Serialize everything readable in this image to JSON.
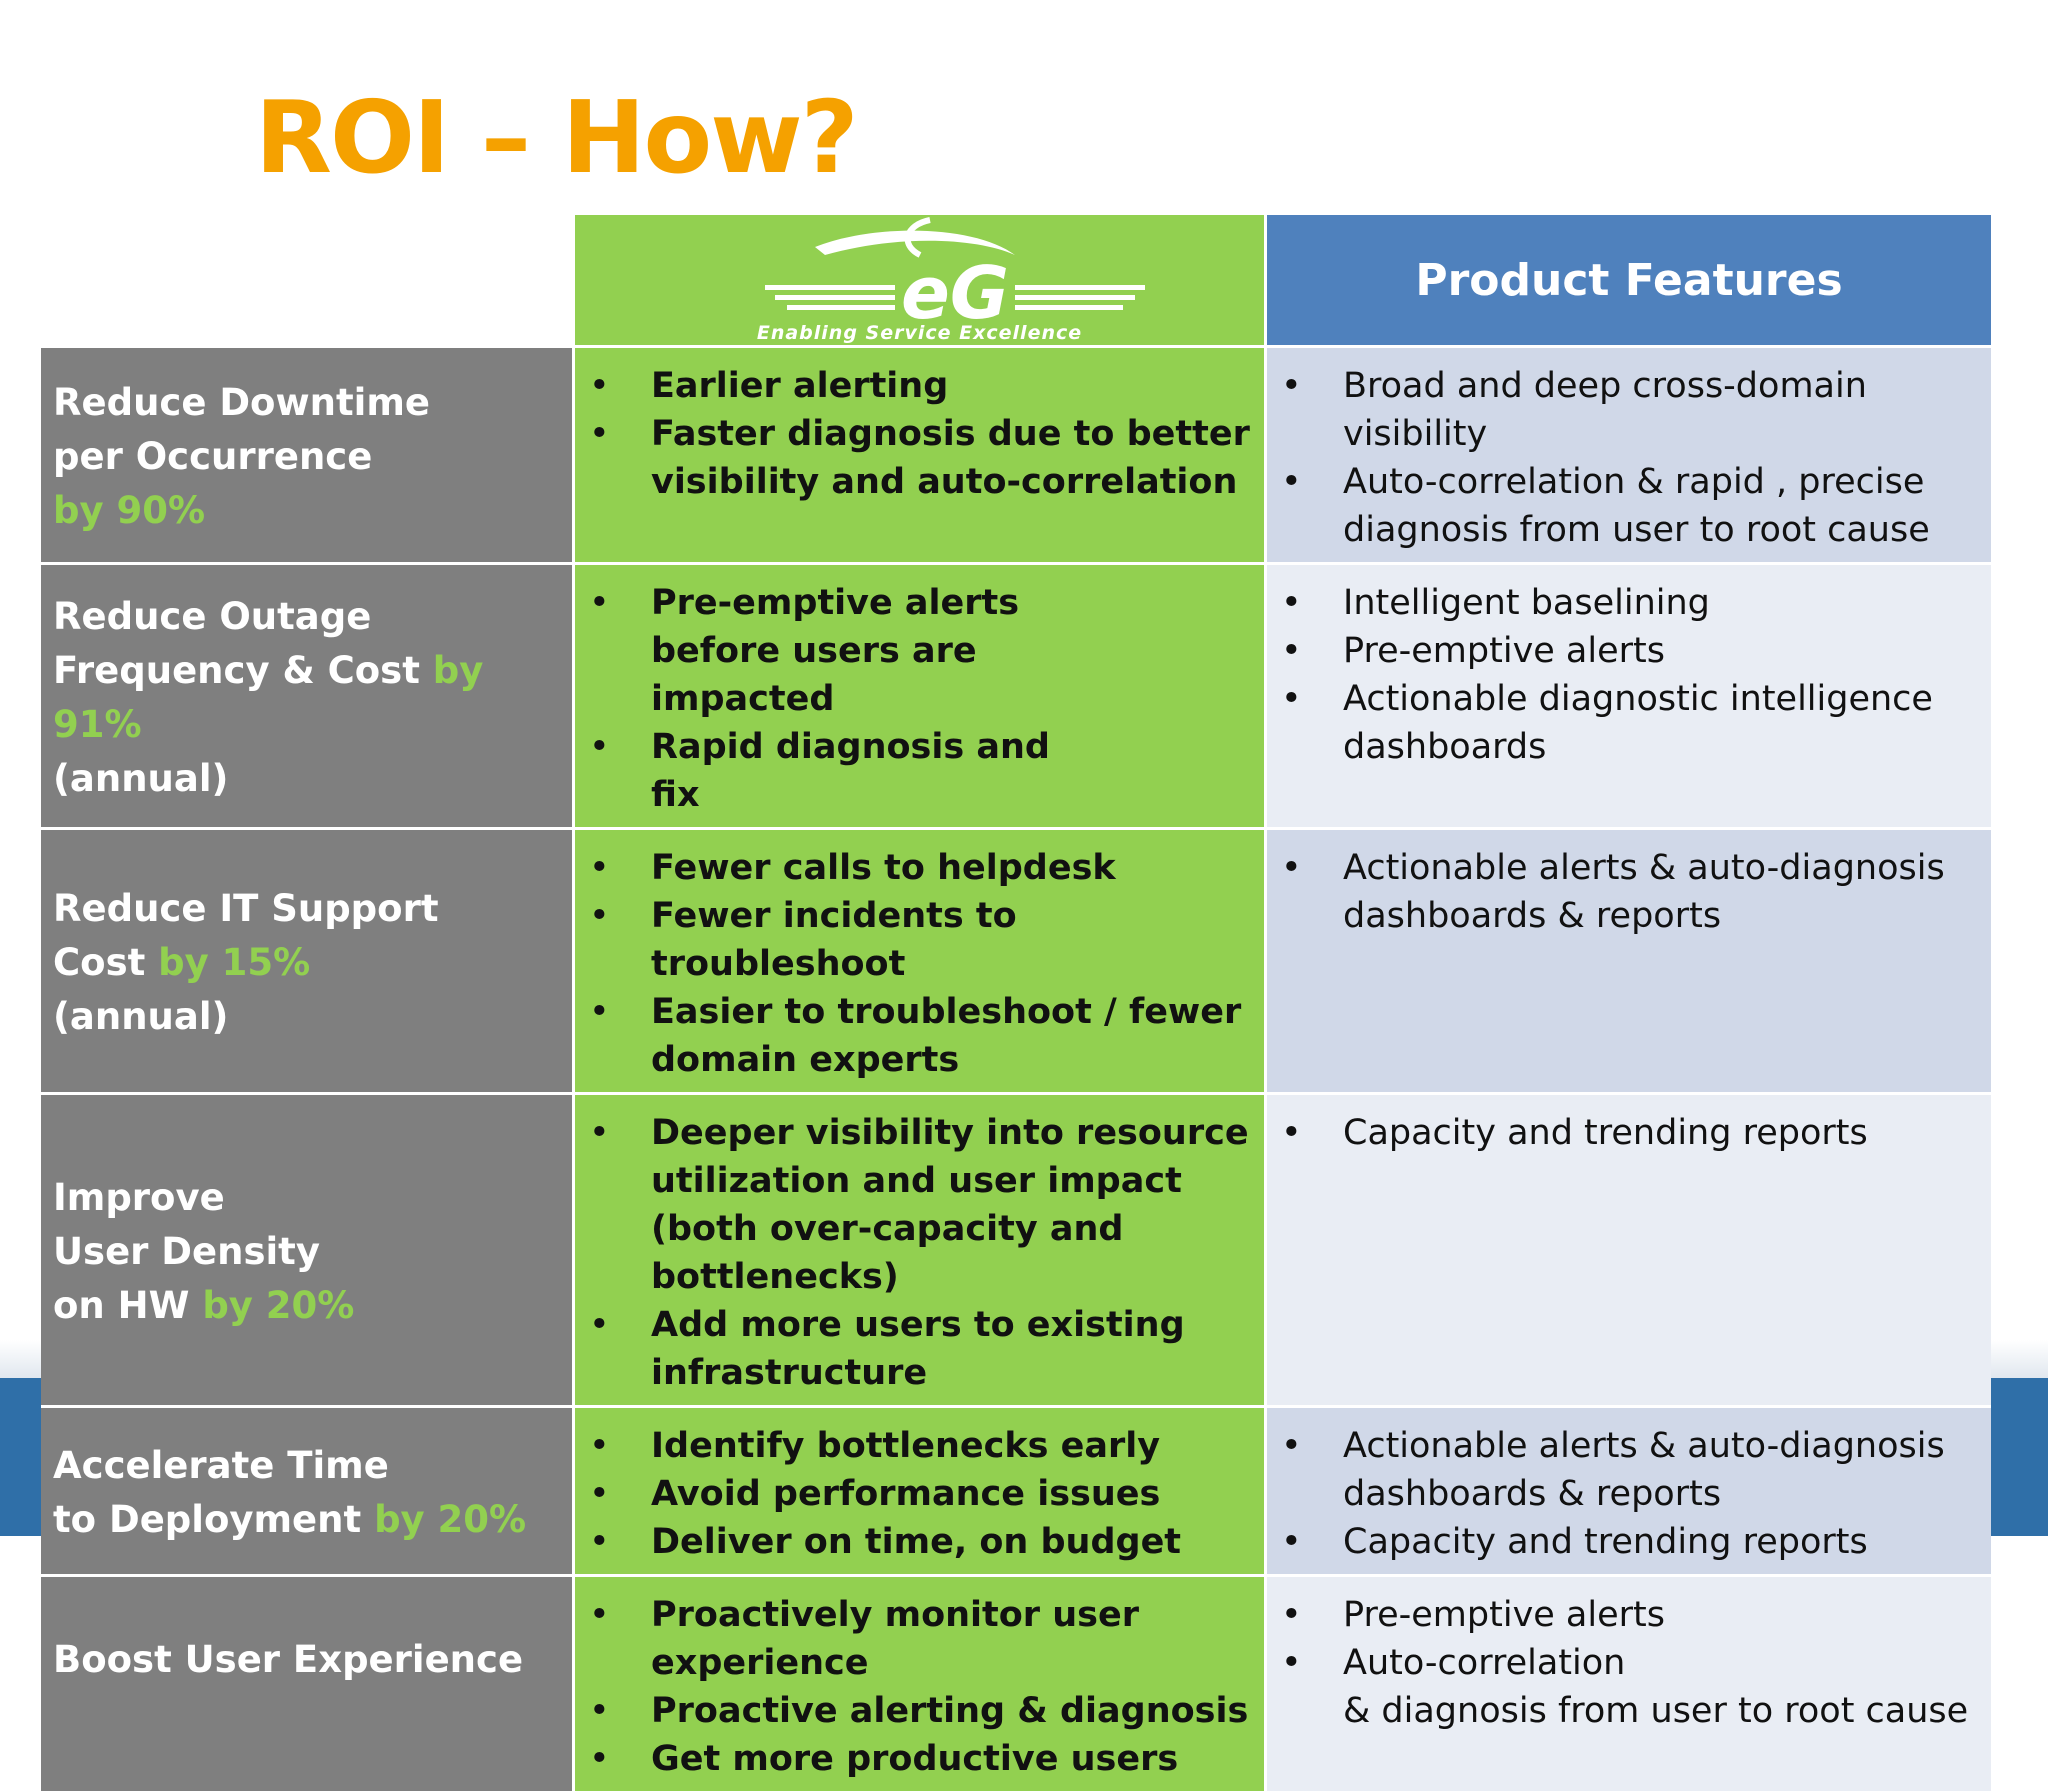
{
  "title": "ROI – How?",
  "header": {
    "logo_text": "eG",
    "logo_tagline": "Enabling Service Excellence",
    "features_label": "Product Features"
  },
  "colors": {
    "title": "#f5a100",
    "goal_bg": "#7f7f7f",
    "highlight": "#92d050",
    "eg_bg": "#92d050",
    "features_header_bg": "#4f81bd",
    "features_row_dark": "#d0d8e8",
    "features_row_light": "#e9edf4"
  },
  "rows": [
    {
      "goal": [
        "Reduce Downtime",
        "per Occurrence",
        ""
      ],
      "goal_highlight": "by 90%",
      "eg": [
        "Earlier alerting",
        "Faster diagnosis due to better visibility and auto-correlation"
      ],
      "features": [
        "Broad and deep cross-domain visibility",
        "Auto-correlation & rapid , precise diagnosis from user to root cause"
      ]
    },
    {
      "goal": [
        "Reduce Outage",
        "Frequency & Cost ",
        "(annual)"
      ],
      "goal_highlight": "by 91%",
      "eg": [
        "Pre-emptive alerts before users are impacted",
        "Rapid diagnosis and fix"
      ],
      "features": [
        "Intelligent baselining",
        "Pre-emptive alerts",
        "Actionable diagnostic intelligence dashboards"
      ]
    },
    {
      "goal": [
        "Reduce IT Support",
        "Cost ",
        "(annual)"
      ],
      "goal_highlight": "by 15%",
      "eg": [
        "Fewer calls to helpdesk",
        "Fewer incidents to troubleshoot",
        "Easier to troubleshoot / fewer domain experts"
      ],
      "features": [
        "Actionable alerts & auto-diagnosis dashboards & reports"
      ]
    },
    {
      "goal": [
        "Improve",
        "User Density",
        "on HW "
      ],
      "goal_highlight": "by 20%",
      "eg": [
        "Deeper visibility into resource utilization and user impact (both over-capacity and bottlenecks)",
        "Add more users to existing infrastructure"
      ],
      "features": [
        "Capacity and trending reports"
      ]
    },
    {
      "goal": [
        "Accelerate Time",
        "to Deployment "
      ],
      "goal_highlight": "by 20%",
      "eg": [
        "Identify bottlenecks early",
        "Avoid performance issues",
        "Deliver on time, on budget"
      ],
      "features": [
        "Actionable alerts & auto-diagnosis dashboards & reports",
        "Capacity and trending reports"
      ]
    },
    {
      "goal": [
        "Boost User Experience"
      ],
      "goal_highlight": "",
      "eg": [
        "Proactively monitor user experience",
        "Proactive alerting & diagnosis",
        "Get more productive users"
      ],
      "features": [
        "Pre-emptive alerts",
        "Auto-correlation",
        "& diagnosis from user to root cause"
      ]
    }
  ]
}
